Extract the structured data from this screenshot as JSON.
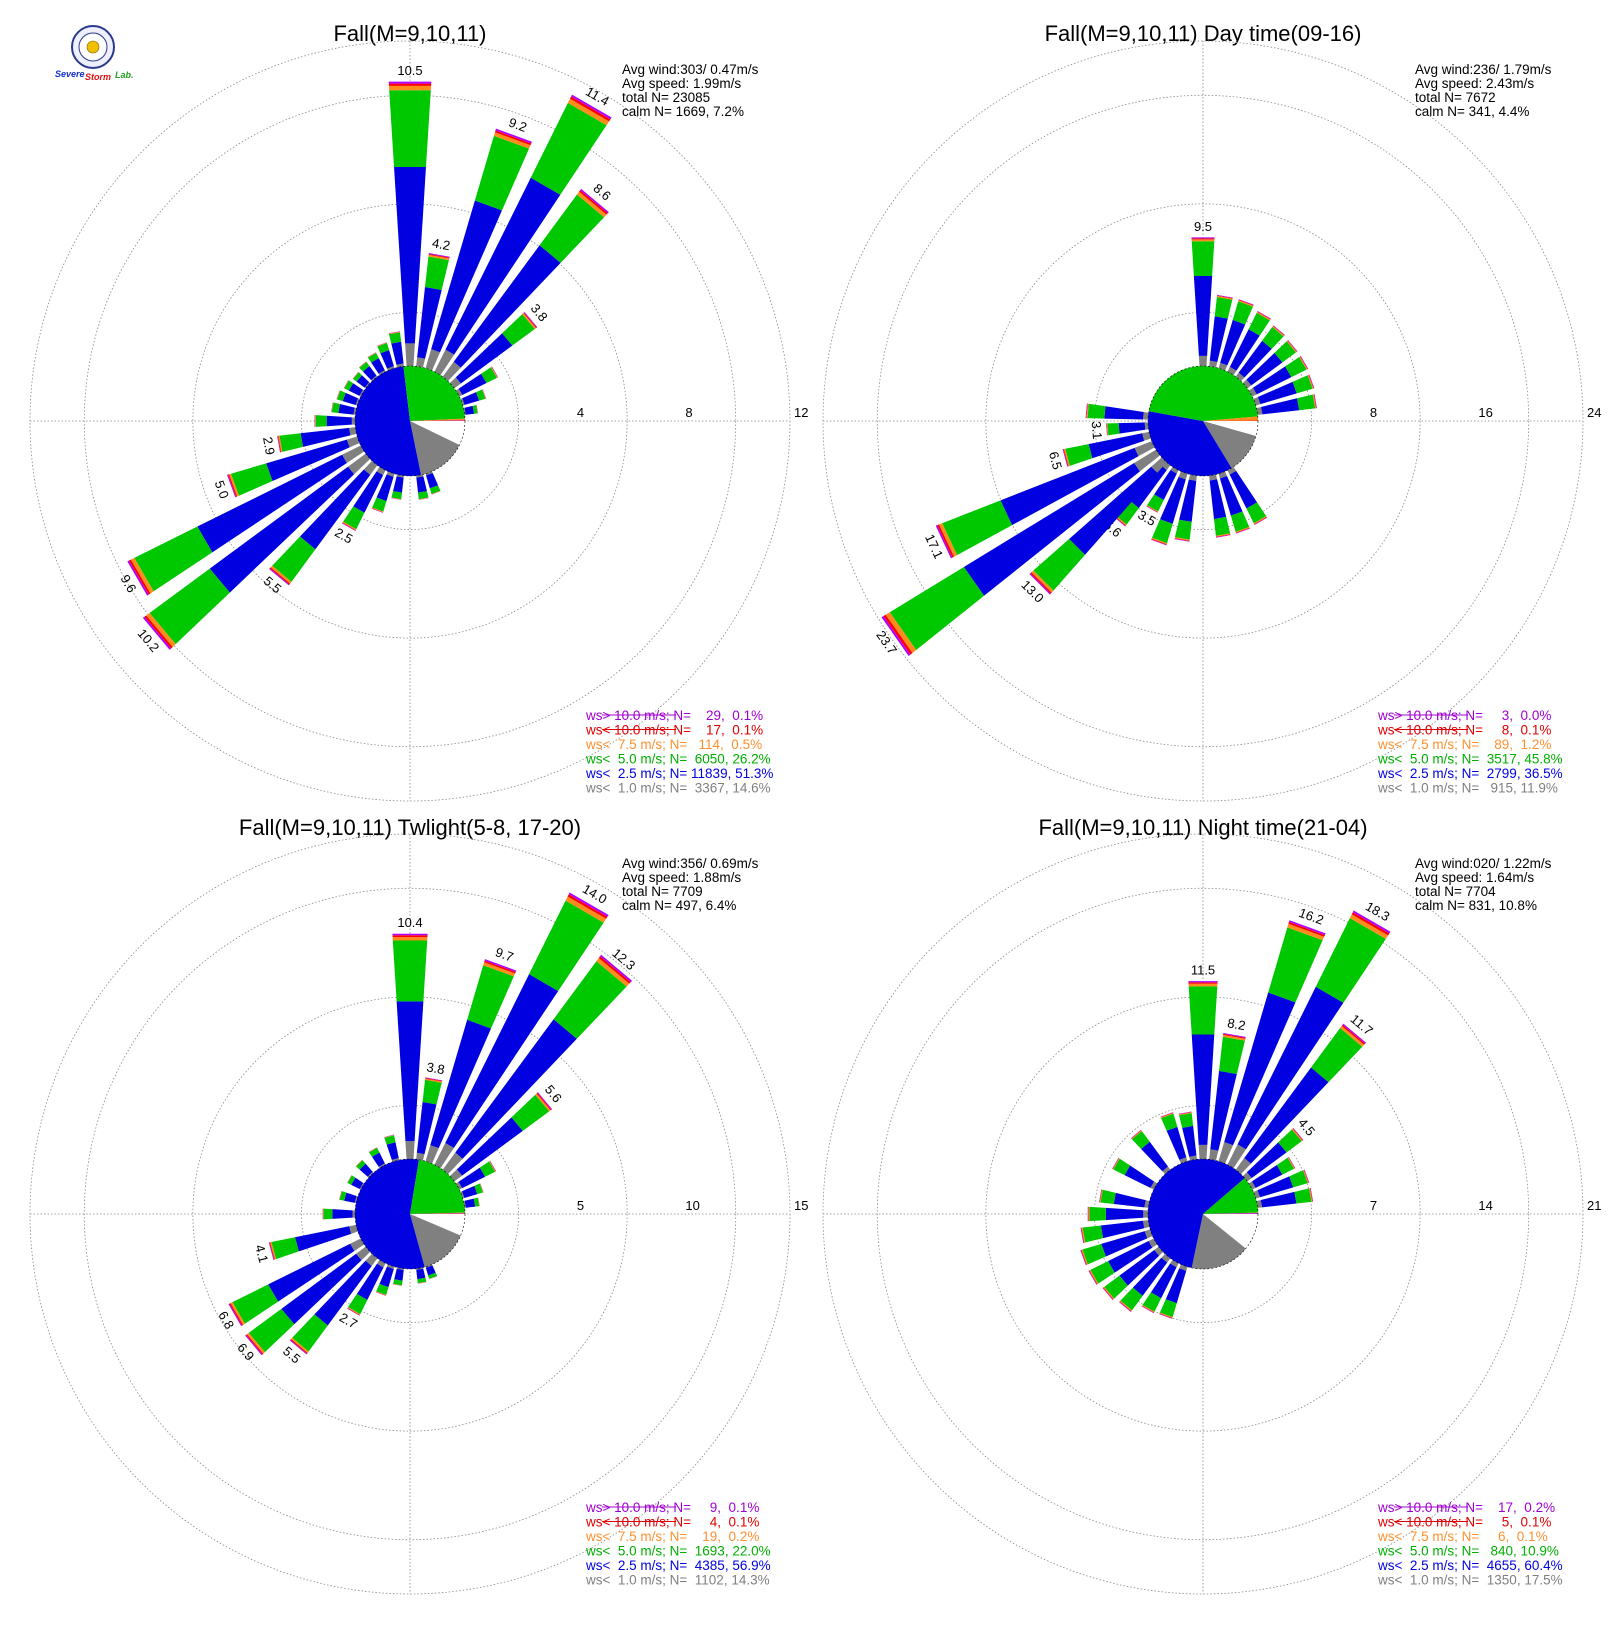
{
  "logo": {
    "text1": "Severe",
    "text2": "Storm",
    "text3": "Lab.",
    "colors": {
      "blue": "#1030c8",
      "red": "#e01010",
      "green": "#20a020"
    }
  },
  "colors": {
    "calm": "#ffffff",
    "lt1": "#808080",
    "lt25": "#0000e0",
    "lt5": "#00c800",
    "lt75": "#ff8c1a",
    "lt10": "#ff0000",
    "gt10": "#b000ff",
    "text_lt1": "#808080",
    "text_lt25": "#0000e0",
    "text_lt5": "#00b000",
    "text_lt75": "#ff9030",
    "text_lt10": "#e00000",
    "text_gt10": "#a000d0"
  },
  "chart_data": [
    {
      "type": "wind-rose",
      "title": "Fall(M=9,10,11)",
      "stats": [
        "Avg wind:303/ 0.47m/s",
        "Avg speed: 1.99m/s",
        "total N=      23085",
        "calm N=    1669,   7.2%"
      ],
      "rticks": [
        "4",
        "8",
        "12"
      ],
      "rmax": 12,
      "center_pie": [
        7.2,
        14.6,
        51.3,
        26.2,
        0.5,
        0.1,
        0.1
      ],
      "petals": [
        {
          "dir": 0,
          "value": 10.5,
          "label": "10.5"
        },
        {
          "dir": 10,
          "value": 4.2,
          "label": "4.2"
        },
        {
          "dir": 20,
          "value": 9.2,
          "label": "9.2"
        },
        {
          "dir": 30,
          "value": 11.4,
          "label": "11.4"
        },
        {
          "dir": 40,
          "value": 8.6,
          "label": "8.6"
        },
        {
          "dir": 50,
          "value": 3.8,
          "label": "3.8"
        },
        {
          "dir": 60,
          "value": 1.6
        },
        {
          "dir": 70,
          "value": 0.9
        },
        {
          "dir": 80,
          "value": 0.5
        },
        {
          "dir": 160,
          "value": 0.8
        },
        {
          "dir": 170,
          "value": 0.9
        },
        {
          "dir": 190,
          "value": 0.9
        },
        {
          "dir": 200,
          "value": 1.5
        },
        {
          "dir": 210,
          "value": 2.5,
          "label": "2.5"
        },
        {
          "dir": 220,
          "value": 5.5,
          "label": "5.5"
        },
        {
          "dir": 230,
          "value": 10.2,
          "label": "10.2"
        },
        {
          "dir": 240,
          "value": 9.6,
          "label": "9.6"
        },
        {
          "dir": 250,
          "value": 5.0,
          "label": "5.0"
        },
        {
          "dir": 260,
          "value": 2.9,
          "label": "2.9"
        },
        {
          "dir": 270,
          "value": 1.5
        },
        {
          "dir": 280,
          "value": 0.9
        },
        {
          "dir": 290,
          "value": 0.8
        },
        {
          "dir": 300,
          "value": 0.7
        },
        {
          "dir": 310,
          "value": 0.6
        },
        {
          "dir": 320,
          "value": 0.7
        },
        {
          "dir": 330,
          "value": 0.8
        },
        {
          "dir": 340,
          "value": 1.0
        },
        {
          "dir": 350,
          "value": 1.3
        }
      ],
      "legend": [
        {
          "text": "ws> 10.0 m/s; N=    29,  0.1%",
          "key": "text_gt10"
        },
        {
          "text": "ws< 10.0 m/s; N=    17,  0.1%",
          "key": "text_lt10"
        },
        {
          "text": "ws<  7.5 m/s; N=   114,  0.5%",
          "key": "text_lt75"
        },
        {
          "text": "ws<  5.0 m/s; N=  6050, 26.2%",
          "key": "text_lt5"
        },
        {
          "text": "ws<  2.5 m/s; N= 11839, 51.3%",
          "key": "text_lt25"
        },
        {
          "text": "ws<  1.0 m/s; N=  3367, 14.6%",
          "key": "text_lt1"
        }
      ]
    },
    {
      "type": "wind-rose",
      "title": "Fall(M=9,10,11) Day time(09-16)",
      "stats": [
        "Avg wind:236/ 1.79m/s",
        "Avg speed: 2.43m/s",
        "total N=       7672",
        "calm N=     341,   4.4%"
      ],
      "rticks": [
        "8",
        "16",
        "24"
      ],
      "rmax": 24,
      "center_pie": [
        4.4,
        11.9,
        36.5,
        45.8,
        1.2,
        0.1,
        0.0
      ],
      "petals": [
        {
          "dir": 0,
          "value": 9.5,
          "label": "9.5"
        },
        {
          "dir": 10,
          "value": 5.3
        },
        {
          "dir": 20,
          "value": 5.3
        },
        {
          "dir": 30,
          "value": 5.0
        },
        {
          "dir": 40,
          "value": 4.7
        },
        {
          "dir": 50,
          "value": 4.6
        },
        {
          "dir": 60,
          "value": 4.6
        },
        {
          "dir": 70,
          "value": 4.5
        },
        {
          "dir": 80,
          "value": 4.4
        },
        {
          "dir": 150,
          "value": 4.5
        },
        {
          "dir": 160,
          "value": 4.6
        },
        {
          "dir": 170,
          "value": 4.6
        },
        {
          "dir": 190,
          "value": 4.9
        },
        {
          "dir": 200,
          "value": 5.5
        },
        {
          "dir": 210,
          "value": 3.5,
          "label": "3.5"
        },
        {
          "dir": 220,
          "value": 5.6,
          "label": "5.6"
        },
        {
          "dir": 225,
          "value": 13.0,
          "label": "13.0"
        },
        {
          "dir": 235,
          "value": 23.7,
          "label": "23.7"
        },
        {
          "dir": 245,
          "value": 17.1,
          "label": "17.1"
        },
        {
          "dir": 255,
          "value": 6.5,
          "label": "6.5"
        },
        {
          "dir": 265,
          "value": 3.1,
          "label": "3.1"
        },
        {
          "dir": 275,
          "value": 4.6
        }
      ],
      "legend": [
        {
          "text": "ws> 10.0 m/s; N=     3,  0.0%",
          "key": "text_gt10"
        },
        {
          "text": "ws< 10.0 m/s; N=     8,  0.1%",
          "key": "text_lt10"
        },
        {
          "text": "ws<  7.5 m/s; N=    89,  1.2%",
          "key": "text_lt75"
        },
        {
          "text": "ws<  5.0 m/s; N=  3517, 45.8%",
          "key": "text_lt5"
        },
        {
          "text": "ws<  2.5 m/s; N=  2799, 36.5%",
          "key": "text_lt25"
        },
        {
          "text": "ws<  1.0 m/s; N=   915, 11.9%",
          "key": "text_lt1"
        }
      ]
    },
    {
      "type": "wind-rose",
      "title": "Fall(M=9,10,11) Twlight(5-8, 17-20)",
      "stats": [
        "Avg wind:356/ 0.69m/s",
        "Avg speed: 1.88m/s",
        "total N=       7709",
        "calm N=     497,   6.4%"
      ],
      "rticks": [
        "5",
        "10",
        "15"
      ],
      "rmax": 15,
      "center_pie": [
        6.4,
        14.3,
        56.9,
        22.0,
        0.2,
        0.1,
        0.1
      ],
      "petals": [
        {
          "dir": 0,
          "value": 10.4,
          "label": "10.4"
        },
        {
          "dir": 10,
          "value": 3.8,
          "label": "3.8"
        },
        {
          "dir": 20,
          "value": 9.7,
          "label": "9.7"
        },
        {
          "dir": 30,
          "value": 14.0,
          "label": "14.0"
        },
        {
          "dir": 40,
          "value": 12.3,
          "label": "12.3"
        },
        {
          "dir": 50,
          "value": 5.6,
          "label": "5.6"
        },
        {
          "dir": 60,
          "value": 1.9
        },
        {
          "dir": 70,
          "value": 1.0
        },
        {
          "dir": 80,
          "value": 0.7
        },
        {
          "dir": 160,
          "value": 0.6
        },
        {
          "dir": 170,
          "value": 0.7
        },
        {
          "dir": 190,
          "value": 0.8
        },
        {
          "dir": 200,
          "value": 1.4
        },
        {
          "dir": 210,
          "value": 2.7,
          "label": "2.7"
        },
        {
          "dir": 220,
          "value": 5.5,
          "label": "5.5"
        },
        {
          "dir": 230,
          "value": 6.9,
          "label": "6.9"
        },
        {
          "dir": 240,
          "value": 6.8,
          "label": "6.8"
        },
        {
          "dir": 255,
          "value": 4.1,
          "label": "4.1"
        },
        {
          "dir": 270,
          "value": 1.5
        },
        {
          "dir": 285,
          "value": 0.8
        },
        {
          "dir": 300,
          "value": 0.7
        },
        {
          "dir": 315,
          "value": 0.8
        },
        {
          "dir": 330,
          "value": 0.9
        },
        {
          "dir": 345,
          "value": 1.2
        }
      ],
      "legend": [
        {
          "text": "ws> 10.0 m/s; N=     9,  0.1%",
          "key": "text_gt10"
        },
        {
          "text": "ws< 10.0 m/s; N=     4,  0.1%",
          "key": "text_lt10"
        },
        {
          "text": "ws<  7.5 m/s; N=    19,  0.2%",
          "key": "text_lt75"
        },
        {
          "text": "ws<  5.0 m/s; N=  1693, 22.0%",
          "key": "text_lt5"
        },
        {
          "text": "ws<  2.5 m/s; N=  4385, 56.9%",
          "key": "text_lt25"
        },
        {
          "text": "ws<  1.0 m/s; N=  1102, 14.3%",
          "key": "text_lt1"
        }
      ]
    },
    {
      "type": "wind-rose",
      "title": "Fall(M=9,10,11) Night time(21-04)",
      "stats": [
        "Avg wind:020/ 1.22m/s",
        "Avg speed: 1.64m/s",
        "total N=       7704",
        "calm N=     831,  10.8%"
      ],
      "rticks": [
        "7",
        "14",
        "21"
      ],
      "rmax": 21,
      "center_pie": [
        10.8,
        17.5,
        60.4,
        10.9,
        0.1,
        0.1,
        0.2
      ],
      "petals": [
        {
          "dir": 0,
          "value": 11.5,
          "label": "11.5"
        },
        {
          "dir": 10,
          "value": 8.2,
          "label": "8.2"
        },
        {
          "dir": 20,
          "value": 16.2,
          "label": "16.2"
        },
        {
          "dir": 30,
          "value": 18.3,
          "label": "18.3"
        },
        {
          "dir": 40,
          "value": 11.7,
          "label": "11.7"
        },
        {
          "dir": 50,
          "value": 4.5,
          "label": "4.5"
        },
        {
          "dir": 60,
          "value": 3.1
        },
        {
          "dir": 70,
          "value": 3.6
        },
        {
          "dir": 80,
          "value": 3.6
        },
        {
          "dir": 200,
          "value": 3.5
        },
        {
          "dir": 210,
          "value": 3.6
        },
        {
          "dir": 220,
          "value": 4.3
        },
        {
          "dir": 230,
          "value": 4.5
        },
        {
          "dir": 240,
          "value": 4.7
        },
        {
          "dir": 250,
          "value": 4.7
        },
        {
          "dir": 260,
          "value": 4.4
        },
        {
          "dir": 270,
          "value": 3.9
        },
        {
          "dir": 280,
          "value": 3.2
        },
        {
          "dir": 300,
          "value": 3.0
        },
        {
          "dir": 320,
          "value": 3.2
        },
        {
          "dir": 340,
          "value": 3.3
        },
        {
          "dir": 350,
          "value": 3.1
        }
      ],
      "legend": [
        {
          "text": "ws> 10.0 m/s; N=    17,  0.2%",
          "key": "text_gt10"
        },
        {
          "text": "ws< 10.0 m/s; N=     5,  0.1%",
          "key": "text_lt10"
        },
        {
          "text": "ws<  7.5 m/s; N=     6,  0.1%",
          "key": "text_lt75"
        },
        {
          "text": "ws<  5.0 m/s; N=   840, 10.9%",
          "key": "text_lt5"
        },
        {
          "text": "ws<  2.5 m/s; N=  4655, 60.4%",
          "key": "text_lt25"
        },
        {
          "text": "ws<  1.0 m/s; N=  1350, 17.5%",
          "key": "text_lt1"
        }
      ]
    }
  ]
}
